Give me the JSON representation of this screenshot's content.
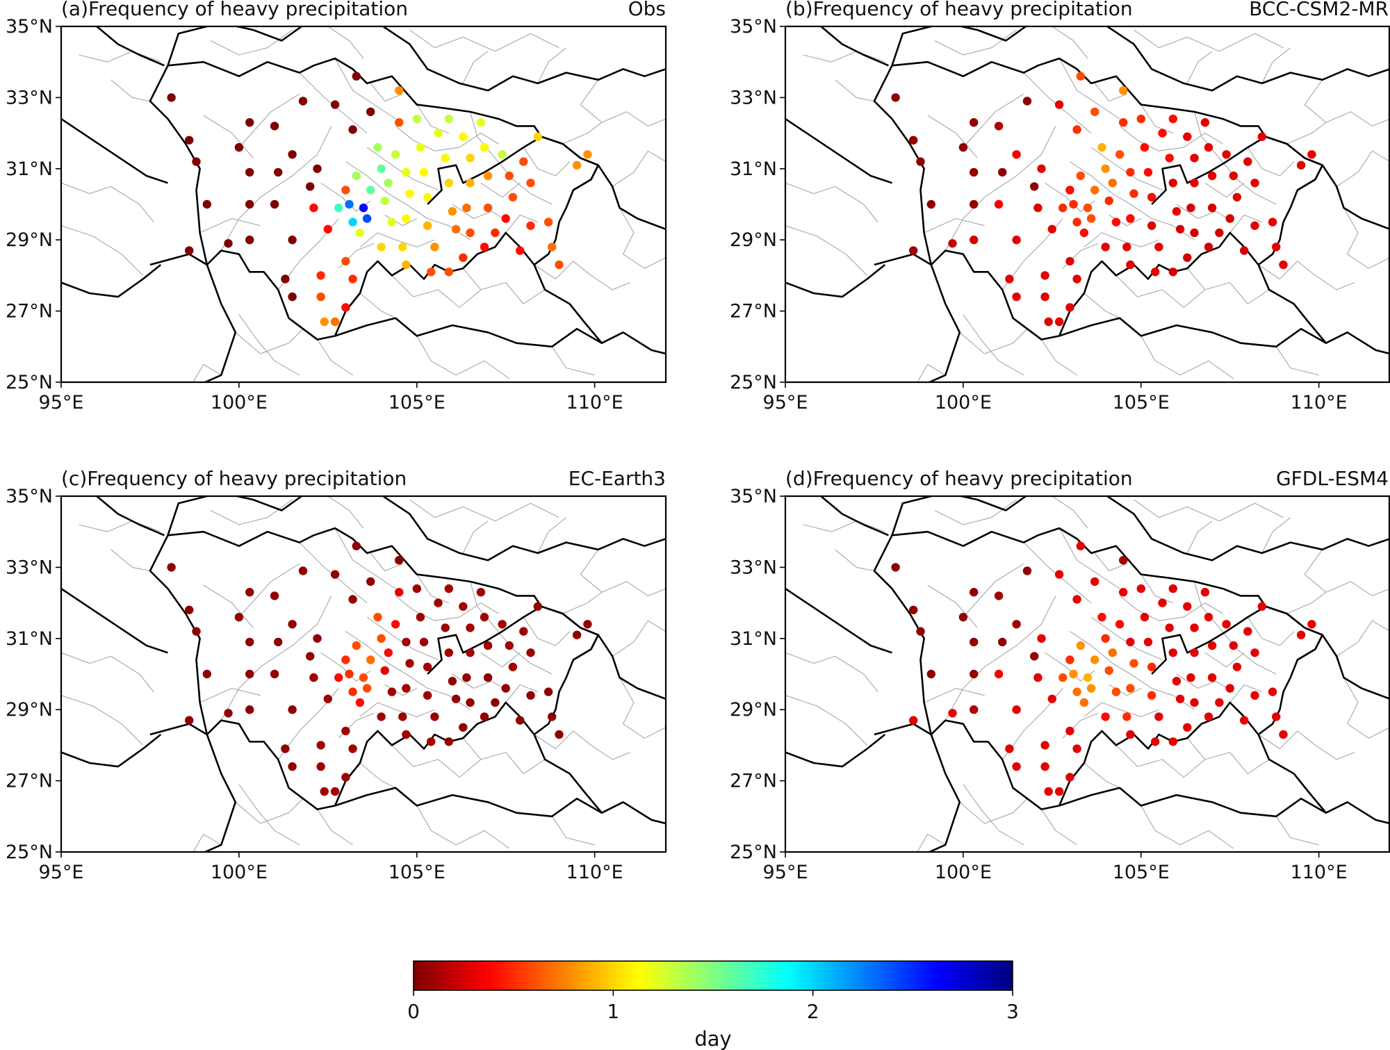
{
  "figure": {
    "panels": [
      {
        "id": "a",
        "title": "(a)Frequency of heavy precipitation",
        "model": "Obs"
      },
      {
        "id": "b",
        "title": "(b)Frequency of heavy precipitation",
        "model": "BCC-CSM2-MR"
      },
      {
        "id": "c",
        "title": "(c)Frequency of heavy precipitation",
        "model": "EC-Earth3"
      },
      {
        "id": "d",
        "title": "(d)Frequency of heavy precipitation",
        "model": "GFDL-ESM4"
      }
    ],
    "lon_ticks": [
      "95°E",
      "100°E",
      "105°E",
      "110°E"
    ],
    "lat_ticks": [
      "25°N",
      "27°N",
      "29°N",
      "31°N",
      "33°N",
      "35°N"
    ],
    "lon_tick_values": [
      95,
      100,
      105,
      110
    ],
    "lat_tick_values": [
      25,
      27,
      29,
      31,
      33,
      35
    ],
    "extent": {
      "lon": [
        95,
        112
      ],
      "lat": [
        25,
        35
      ]
    },
    "colorbar": {
      "label": "day",
      "ticks": [
        "0",
        "1",
        "2",
        "3"
      ],
      "tick_values": [
        0,
        1,
        2,
        3
      ],
      "range": [
        0,
        3
      ],
      "colormap": "jet_r",
      "stops": [
        "#7f0000",
        "#ff0000",
        "#ff8000",
        "#ffff00",
        "#80ff80",
        "#00ffff",
        "#0080ff",
        "#0000ff",
        "#00007f"
      ]
    }
  },
  "chart_data": {
    "type": "scatter",
    "x_name": "longitude",
    "y_name": "latitude",
    "value_name": "day",
    "stations": [
      {
        "lon": 98.1,
        "lat": 33.0,
        "v": [
          0.0,
          0.05,
          0.05,
          0.05
        ]
      },
      {
        "lon": 98.6,
        "lat": 31.8,
        "v": [
          0.0,
          0.05,
          0.05,
          0.05
        ]
      },
      {
        "lon": 98.8,
        "lat": 31.2,
        "v": [
          0.0,
          0.05,
          0.05,
          0.05
        ]
      },
      {
        "lon": 99.1,
        "lat": 30.0,
        "v": [
          0.0,
          0.05,
          0.05,
          0.05
        ]
      },
      {
        "lon": 98.6,
        "lat": 28.7,
        "v": [
          0.0,
          0.1,
          0.05,
          0.3
        ]
      },
      {
        "lon": 99.7,
        "lat": 28.9,
        "v": [
          0.0,
          0.2,
          0.05,
          0.3
        ]
      },
      {
        "lon": 100.0,
        "lat": 31.6,
        "v": [
          0.0,
          0.05,
          0.05,
          0.05
        ]
      },
      {
        "lon": 100.3,
        "lat": 30.9,
        "v": [
          0.0,
          0.05,
          0.05,
          0.05
        ]
      },
      {
        "lon": 100.3,
        "lat": 30.0,
        "v": [
          0.0,
          0.05,
          0.05,
          0.05
        ]
      },
      {
        "lon": 100.3,
        "lat": 29.0,
        "v": [
          0.0,
          0.25,
          0.05,
          0.15
        ]
      },
      {
        "lon": 100.3,
        "lat": 32.3,
        "v": [
          0.0,
          0.05,
          0.05,
          0.05
        ]
      },
      {
        "lon": 101.0,
        "lat": 32.2,
        "v": [
          0.0,
          0.15,
          0.05,
          0.1
        ]
      },
      {
        "lon": 101.1,
        "lat": 30.9,
        "v": [
          0.0,
          0.05,
          0.05,
          0.05
        ]
      },
      {
        "lon": 101.0,
        "lat": 30.0,
        "v": [
          0.0,
          0.35,
          0.05,
          0.35
        ]
      },
      {
        "lon": 101.3,
        "lat": 27.9,
        "v": [
          0.0,
          0.3,
          0.05,
          0.3
        ]
      },
      {
        "lon": 101.5,
        "lat": 27.4,
        "v": [
          0.0,
          0.3,
          0.05,
          0.3
        ]
      },
      {
        "lon": 101.5,
        "lat": 31.4,
        "v": [
          0.0,
          0.35,
          0.05,
          0.1
        ]
      },
      {
        "lon": 101.5,
        "lat": 29.0,
        "v": [
          0.0,
          0.3,
          0.05,
          0.3
        ]
      },
      {
        "lon": 101.8,
        "lat": 32.9,
        "v": [
          0.0,
          0.05,
          0.05,
          0.05
        ]
      },
      {
        "lon": 102.0,
        "lat": 30.5,
        "v": [
          0.0,
          0.05,
          0.05,
          0.05
        ]
      },
      {
        "lon": 102.1,
        "lat": 29.9,
        "v": [
          0.4,
          0.3,
          0.1,
          0.3
        ]
      },
      {
        "lon": 102.2,
        "lat": 31.0,
        "v": [
          0.0,
          0.3,
          0.05,
          0.3
        ]
      },
      {
        "lon": 102.3,
        "lat": 28.0,
        "v": [
          0.5,
          0.3,
          0.1,
          0.3
        ]
      },
      {
        "lon": 102.3,
        "lat": 27.4,
        "v": [
          0.6,
          0.3,
          0.1,
          0.3
        ]
      },
      {
        "lon": 102.4,
        "lat": 26.7,
        "v": [
          0.8,
          0.3,
          0.1,
          0.3
        ]
      },
      {
        "lon": 102.7,
        "lat": 26.7,
        "v": [
          0.7,
          0.3,
          0.1,
          0.3
        ]
      },
      {
        "lon": 102.5,
        "lat": 29.3,
        "v": [
          0.4,
          0.3,
          0.1,
          0.3
        ]
      },
      {
        "lon": 102.8,
        "lat": 29.9,
        "v": [
          1.7,
          0.5,
          0.4,
          0.6
        ]
      },
      {
        "lon": 102.7,
        "lat": 32.8,
        "v": [
          0.0,
          0.3,
          0.05,
          0.3
        ]
      },
      {
        "lon": 103.0,
        "lat": 30.4,
        "v": [
          0.6,
          0.4,
          0.5,
          0.5
        ]
      },
      {
        "lon": 103.1,
        "lat": 30.0,
        "v": [
          2.3,
          0.5,
          0.5,
          0.8
        ]
      },
      {
        "lon": 103.2,
        "lat": 29.5,
        "v": [
          2.0,
          0.5,
          0.5,
          0.7
        ]
      },
      {
        "lon": 103.3,
        "lat": 30.8,
        "v": [
          1.4,
          0.6,
          0.6,
          0.8
        ]
      },
      {
        "lon": 103.4,
        "lat": 29.2,
        "v": [
          1.2,
          0.4,
          0.4,
          0.7
        ]
      },
      {
        "lon": 103.5,
        "lat": 29.9,
        "v": [
          2.6,
          0.6,
          0.6,
          0.9
        ]
      },
      {
        "lon": 103.6,
        "lat": 29.6,
        "v": [
          2.4,
          0.6,
          0.6,
          0.8
        ]
      },
      {
        "lon": 103.7,
        "lat": 30.4,
        "v": [
          1.6,
          0.7,
          0.7,
          0.8
        ]
      },
      {
        "lon": 103.0,
        "lat": 28.4,
        "v": [
          0.6,
          0.3,
          0.1,
          0.3
        ]
      },
      {
        "lon": 103.2,
        "lat": 27.9,
        "v": [
          0.5,
          0.3,
          0.1,
          0.3
        ]
      },
      {
        "lon": 103.0,
        "lat": 27.1,
        "v": [
          0.4,
          0.3,
          0.1,
          0.3
        ]
      },
      {
        "lon": 103.2,
        "lat": 32.1,
        "v": [
          0.0,
          0.5,
          0.05,
          0.3
        ]
      },
      {
        "lon": 103.3,
        "lat": 33.6,
        "v": [
          0.0,
          0.6,
          0.05,
          0.3
        ]
      },
      {
        "lon": 103.7,
        "lat": 32.6,
        "v": [
          0.0,
          0.6,
          0.05,
          0.3
        ]
      },
      {
        "lon": 103.9,
        "lat": 31.6,
        "v": [
          1.4,
          0.9,
          0.6,
          0.4
        ]
      },
      {
        "lon": 104.0,
        "lat": 31.0,
        "v": [
          1.6,
          0.8,
          0.6,
          0.5
        ]
      },
      {
        "lon": 104.2,
        "lat": 30.6,
        "v": [
          1.4,
          0.7,
          0.4,
          0.7
        ]
      },
      {
        "lon": 104.1,
        "lat": 30.1,
        "v": [
          1.3,
          0.5,
          0.3,
          0.6
        ]
      },
      {
        "lon": 104.3,
        "lat": 29.5,
        "v": [
          1.2,
          0.4,
          0.1,
          0.6
        ]
      },
      {
        "lon": 104.0,
        "lat": 28.8,
        "v": [
          1.0,
          0.3,
          0.1,
          0.4
        ]
      },
      {
        "lon": 104.4,
        "lat": 31.4,
        "v": [
          1.3,
          0.6,
          0.4,
          0.4
        ]
      },
      {
        "lon": 104.7,
        "lat": 30.9,
        "v": [
          1.2,
          0.5,
          0.1,
          0.3
        ]
      },
      {
        "lon": 104.8,
        "lat": 30.3,
        "v": [
          1.1,
          0.5,
          0.1,
          0.6
        ]
      },
      {
        "lon": 104.7,
        "lat": 29.6,
        "v": [
          1.1,
          0.4,
          0.1,
          0.6
        ]
      },
      {
        "lon": 104.6,
        "lat": 28.8,
        "v": [
          1.0,
          0.3,
          0.1,
          0.5
        ]
      },
      {
        "lon": 104.7,
        "lat": 28.3,
        "v": [
          0.9,
          0.3,
          0.1,
          0.3
        ]
      },
      {
        "lon": 104.5,
        "lat": 32.3,
        "v": [
          0.6,
          0.5,
          0.3,
          0.3
        ]
      },
      {
        "lon": 104.5,
        "lat": 33.2,
        "v": [
          0.8,
          0.8,
          0.05,
          0.1
        ]
      },
      {
        "lon": 105.0,
        "lat": 32.4,
        "v": [
          1.3,
          0.5,
          0.1,
          0.3
        ]
      },
      {
        "lon": 105.1,
        "lat": 31.6,
        "v": [
          1.2,
          0.4,
          0.1,
          0.3
        ]
      },
      {
        "lon": 105.2,
        "lat": 30.9,
        "v": [
          1.1,
          0.4,
          0.1,
          0.3
        ]
      },
      {
        "lon": 105.3,
        "lat": 30.2,
        "v": [
          1.1,
          0.4,
          0.1,
          0.5
        ]
      },
      {
        "lon": 105.3,
        "lat": 29.4,
        "v": [
          0.9,
          0.3,
          0.1,
          0.5
        ]
      },
      {
        "lon": 105.5,
        "lat": 28.8,
        "v": [
          0.8,
          0.3,
          0.1,
          0.3
        ]
      },
      {
        "lon": 105.4,
        "lat": 28.1,
        "v": [
          0.6,
          0.3,
          0.1,
          0.3
        ]
      },
      {
        "lon": 105.6,
        "lat": 32.0,
        "v": [
          1.2,
          0.4,
          0.1,
          0.3
        ]
      },
      {
        "lon": 105.8,
        "lat": 31.3,
        "v": [
          1.1,
          0.4,
          0.1,
          0.3
        ]
      },
      {
        "lon": 105.9,
        "lat": 30.6,
        "v": [
          1.0,
          0.3,
          0.1,
          0.3
        ]
      },
      {
        "lon": 106.0,
        "lat": 29.8,
        "v": [
          0.8,
          0.3,
          0.05,
          0.3
        ]
      },
      {
        "lon": 106.1,
        "lat": 29.3,
        "v": [
          0.7,
          0.25,
          0.05,
          0.3
        ]
      },
      {
        "lon": 105.9,
        "lat": 32.4,
        "v": [
          1.3,
          0.4,
          0.1,
          0.3
        ]
      },
      {
        "lon": 106.3,
        "lat": 31.9,
        "v": [
          1.1,
          0.3,
          0.1,
          0.3
        ]
      },
      {
        "lon": 106.5,
        "lat": 31.3,
        "v": [
          1.0,
          0.3,
          0.1,
          0.3
        ]
      },
      {
        "lon": 106.5,
        "lat": 30.6,
        "v": [
          0.9,
          0.3,
          0.1,
          0.3
        ]
      },
      {
        "lon": 106.4,
        "lat": 29.9,
        "v": [
          0.7,
          0.25,
          0.05,
          0.3
        ]
      },
      {
        "lon": 106.5,
        "lat": 29.2,
        "v": [
          0.6,
          0.25,
          0.05,
          0.3
        ]
      },
      {
        "lon": 106.8,
        "lat": 32.3,
        "v": [
          1.2,
          0.3,
          0.1,
          0.3
        ]
      },
      {
        "lon": 106.9,
        "lat": 31.6,
        "v": [
          1.1,
          0.3,
          0.1,
          0.3
        ]
      },
      {
        "lon": 107.0,
        "lat": 30.8,
        "v": [
          0.8,
          0.3,
          0.1,
          0.3
        ]
      },
      {
        "lon": 107.0,
        "lat": 29.9,
        "v": [
          0.6,
          0.25,
          0.05,
          0.3
        ]
      },
      {
        "lon": 107.2,
        "lat": 29.2,
        "v": [
          0.5,
          0.25,
          0.05,
          0.3
        ]
      },
      {
        "lon": 107.4,
        "lat": 31.4,
        "v": [
          1.3,
          0.3,
          0.1,
          0.3
        ]
      },
      {
        "lon": 107.6,
        "lat": 30.8,
        "v": [
          0.6,
          0.3,
          0.1,
          0.3
        ]
      },
      {
        "lon": 107.7,
        "lat": 30.2,
        "v": [
          0.6,
          0.3,
          0.1,
          0.3
        ]
      },
      {
        "lon": 107.5,
        "lat": 29.6,
        "v": [
          0.4,
          0.25,
          0.05,
          0.3
        ]
      },
      {
        "lon": 108.0,
        "lat": 31.2,
        "v": [
          0.6,
          0.3,
          0.1,
          0.3
        ]
      },
      {
        "lon": 108.2,
        "lat": 30.6,
        "v": [
          0.6,
          0.3,
          0.1,
          0.3
        ]
      },
      {
        "lon": 108.4,
        "lat": 31.9,
        "v": [
          1.0,
          0.3,
          0.05,
          0.3
        ]
      },
      {
        "lon": 108.7,
        "lat": 29.5,
        "v": [
          0.6,
          0.3,
          0.05,
          0.3
        ]
      },
      {
        "lon": 108.8,
        "lat": 28.8,
        "v": [
          0.7,
          0.3,
          0.05,
          0.3
        ]
      },
      {
        "lon": 109.0,
        "lat": 28.3,
        "v": [
          0.6,
          0.3,
          0.05,
          0.3
        ]
      },
      {
        "lon": 109.5,
        "lat": 31.1,
        "v": [
          0.8,
          0.3,
          0.05,
          0.3
        ]
      },
      {
        "lon": 109.8,
        "lat": 31.4,
        "v": [
          0.8,
          0.3,
          0.05,
          0.3
        ]
      },
      {
        "lon": 108.2,
        "lat": 29.4,
        "v": [
          0.5,
          0.3,
          0.05,
          0.3
        ]
      },
      {
        "lon": 107.9,
        "lat": 28.7,
        "v": [
          0.4,
          0.25,
          0.05,
          0.3
        ]
      },
      {
        "lon": 106.9,
        "lat": 28.8,
        "v": [
          0.4,
          0.25,
          0.05,
          0.3
        ]
      },
      {
        "lon": 106.3,
        "lat": 28.5,
        "v": [
          0.5,
          0.25,
          0.05,
          0.3
        ]
      },
      {
        "lon": 105.9,
        "lat": 28.1,
        "v": [
          0.6,
          0.25,
          0.05,
          0.3
        ]
      }
    ]
  }
}
